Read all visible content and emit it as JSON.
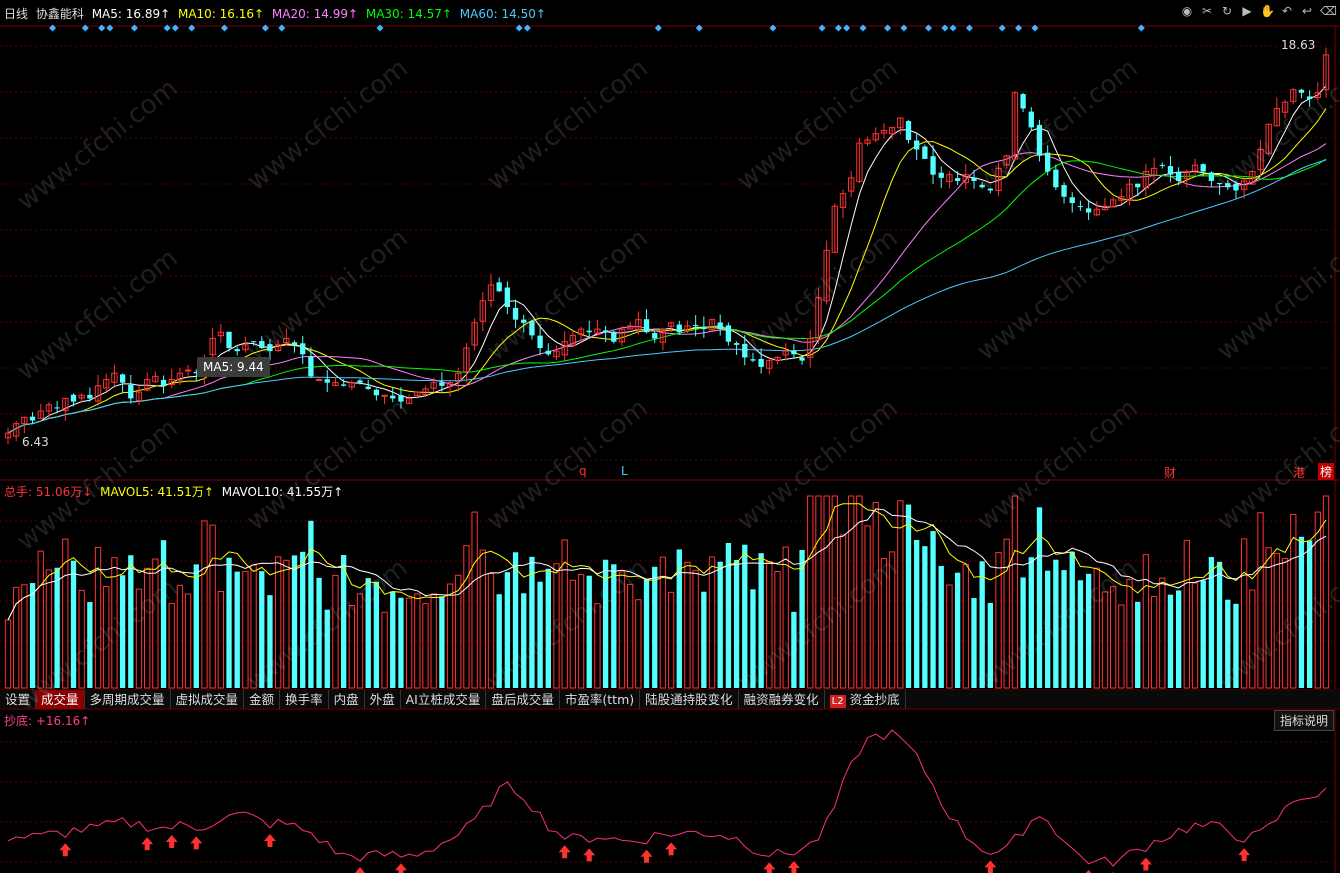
{
  "colors": {
    "up": "#ff3232",
    "down": "#54ffff",
    "ma5": "#ffffff",
    "ma10": "#ffff00",
    "ma20": "#ff80ff",
    "ma30": "#00ff00",
    "ma60": "#4fc9ff",
    "grid": "#5a0000",
    "alert": "#ff3232"
  },
  "header": {
    "period": "日线",
    "stock_name": "协鑫能科",
    "ma5": "MA5: 16.89↑",
    "ma10": "MA10: 16.16↑",
    "ma20": "MA20: 14.99↑",
    "ma30": "MA30: 14.57↑",
    "ma60": "MA60: 14.50↑"
  },
  "toolbar_icons": [
    "eye-icon",
    "scissors-icon",
    "refresh-icon",
    "play-icon",
    "hand-icon",
    "undo-icon",
    "back-icon",
    "trash-icon"
  ],
  "price_panel": {
    "high_label": "18.63",
    "low_label": "6.43",
    "tooltip": "MA5: 9.44",
    "markers": {
      "q": "q",
      "L": "L",
      "cai": "财",
      "gang": "港",
      "bang": "榜"
    }
  },
  "volume_panel": {
    "total": "总手: 51.06万↓",
    "mavol5": "MAVOL5: 41.51万↑",
    "mavol10": "MAVOL10: 41.55万↑"
  },
  "tabs": [
    {
      "label": "设置"
    },
    {
      "label": "成交量"
    },
    {
      "label": "多周期成交量"
    },
    {
      "label": "虚拟成交量"
    },
    {
      "label": "金额"
    },
    {
      "label": "换手率"
    },
    {
      "label": "内盘"
    },
    {
      "label": "外盘"
    },
    {
      "label": "AI立桩成交量"
    },
    {
      "label": "盘后成交量"
    },
    {
      "label": "市盈率(ttm)"
    },
    {
      "label": "陆股通持股变化"
    },
    {
      "label": "融资融券变化"
    },
    {
      "label": "资金抄底",
      "badge": "L2"
    }
  ],
  "indicator_panel": {
    "title": "抄底: +16.16↑",
    "help_button": "指标说明"
  },
  "watermark": "www.cfchi.com",
  "chart_data": [
    {
      "type": "candlestick",
      "title": "协鑫能科 日线",
      "ylim": [
        6.0,
        19.2
      ],
      "close": [
        6.6,
        6.9,
        7.1,
        7.0,
        7.3,
        7.5,
        7.4,
        7.7,
        7.6,
        7.8,
        7.7,
        8.1,
        8.3,
        8.5,
        8.2,
        7.7,
        7.9,
        8.3,
        8.4,
        8.1,
        8.3,
        8.5,
        8.6,
        8.5,
        9.0,
        9.6,
        9.8,
        9.3,
        9.2,
        9.4,
        9.5,
        9.3,
        9.2,
        9.4,
        9.6,
        9.4,
        9.1,
        8.4,
        8.3,
        8.2,
        8.2,
        8.1,
        8.2,
        8.2,
        8.0,
        7.8,
        7.8,
        7.7,
        7.6,
        7.7,
        7.9,
        8.0,
        8.2,
        8.1,
        8.2,
        8.5,
        9.3,
        10.1,
        10.8,
        11.3,
        11.1,
        10.6,
        10.2,
        10.1,
        9.7,
        9.3,
        9.1,
        9.2,
        9.5,
        9.7,
        9.9,
        9.8,
        9.9,
        9.8,
        9.5,
        9.9,
        10.0,
        10.2,
        9.8,
        9.6,
        9.9,
        10.1,
        9.8,
        10.0,
        10.0,
        9.9,
        10.2,
        9.9,
        9.5,
        9.4,
        9.0,
        8.9,
        8.7,
        8.9,
        9.0,
        9.2,
        9.1,
        8.9,
        9.6,
        10.9,
        12.4,
        13.8,
        14.2,
        14.7,
        15.8,
        15.9,
        16.1,
        16.2,
        16.3,
        16.6,
        15.9,
        15.6,
        15.3,
        14.8,
        14.7,
        14.8,
        14.6,
        14.8,
        14.6,
        14.4,
        14.3,
        15.0,
        15.4,
        17.4,
        16.9,
        16.3,
        15.4,
        14.9,
        14.4,
        14.1,
        13.9,
        13.8,
        13.6,
        13.7,
        13.8,
        14.0,
        14.1,
        14.5,
        14.4,
        14.9,
        15.0,
        15.1,
        14.8,
        14.6,
        14.9,
        15.1,
        14.9,
        14.6,
        14.5,
        14.4,
        14.3,
        14.6,
        14.9,
        15.6,
        16.4,
        16.9,
        17.1,
        17.5,
        17.4,
        17.2,
        17.4,
        18.6
      ]
    },
    {
      "type": "bar",
      "title": "成交量",
      "ylim": [
        0,
        100
      ]
    },
    {
      "type": "line",
      "title": "抄底",
      "series": [
        {
          "name": "抄底"
        }
      ]
    }
  ]
}
